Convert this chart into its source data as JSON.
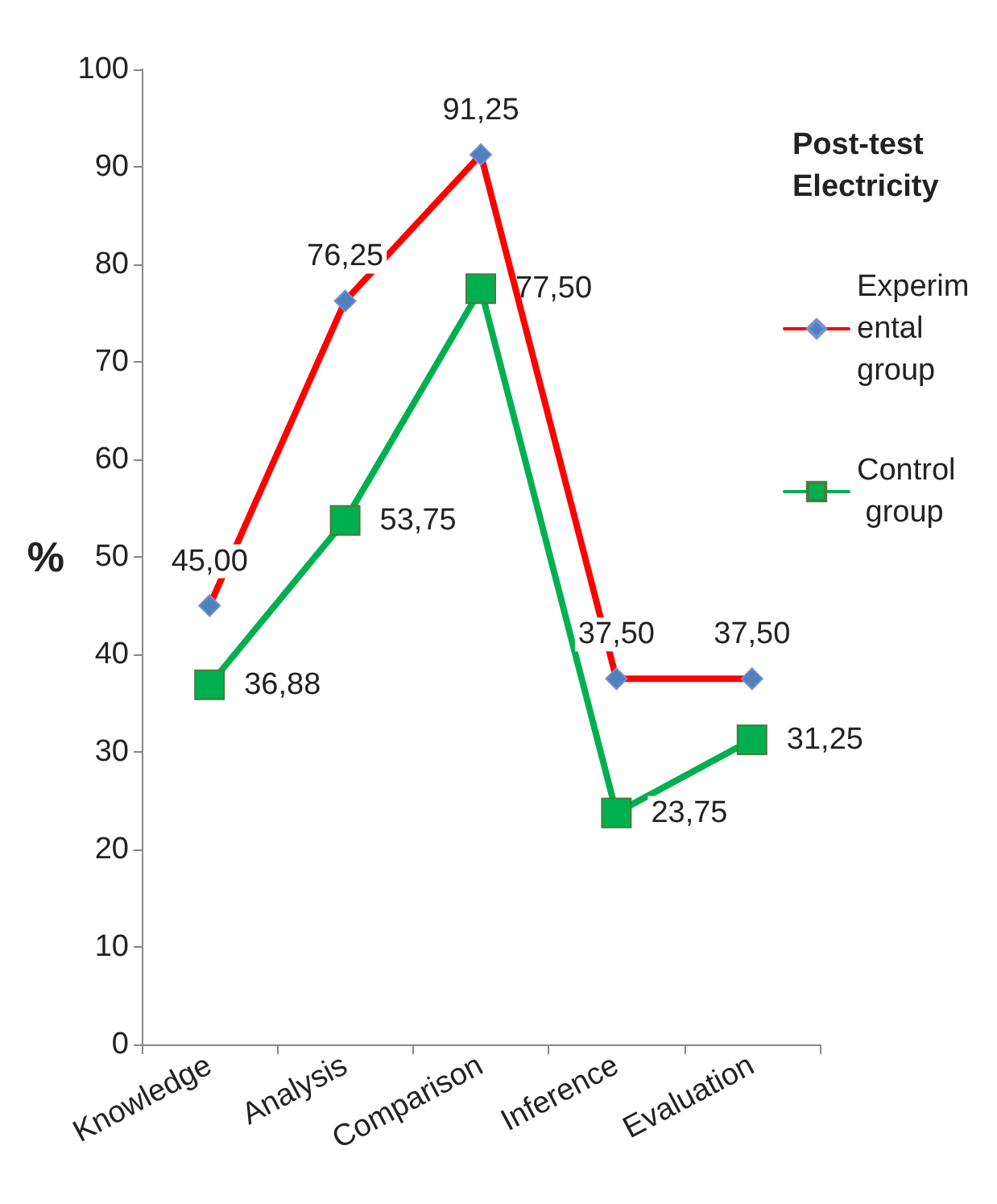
{
  "chart_data": {
    "type": "line",
    "title": "Post-test Electricity",
    "ylabel": "%",
    "categories": [
      "Knowledge",
      "Analysis",
      "Comparison",
      "Inference",
      "Evaluation"
    ],
    "series": [
      {
        "name": "Experimental group",
        "color": "#ff0000",
        "marker": "diamond",
        "values": [
          45.0,
          76.25,
          91.25,
          37.5,
          37.5
        ],
        "value_labels": [
          "45,00",
          "76,25",
          "91,25",
          "37,50",
          "37,50"
        ]
      },
      {
        "name": "Control group",
        "color": "#00b050",
        "marker": "square",
        "values": [
          36.88,
          53.75,
          77.5,
          23.75,
          31.25
        ],
        "value_labels": [
          "36,88",
          "53,75",
          "77,50",
          "23,75",
          "31,25"
        ]
      }
    ],
    "ylim": [
      0,
      100
    ],
    "yticks": [
      0,
      10,
      20,
      30,
      40,
      50,
      60,
      70,
      80,
      90,
      100
    ],
    "grid": false,
    "legend": "right",
    "line_style": "solid"
  }
}
